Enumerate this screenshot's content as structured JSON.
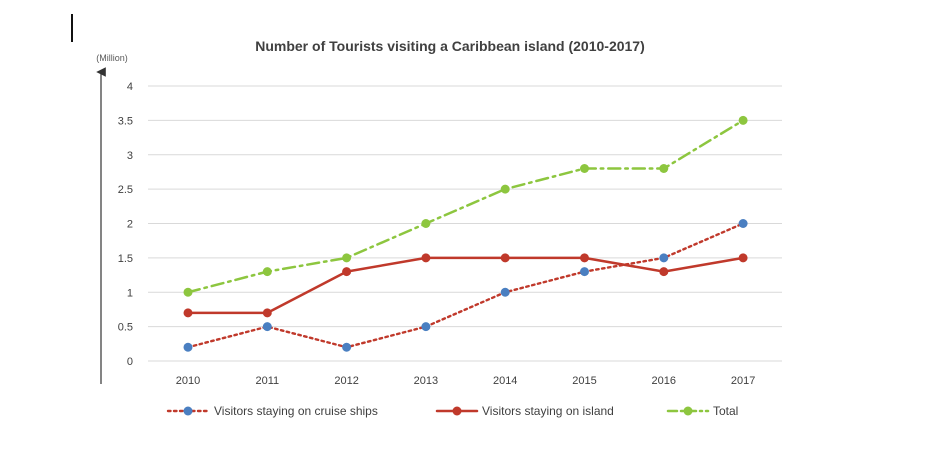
{
  "chart_data": {
    "type": "line",
    "title": "Number of Tourists visiting a Caribbean island (2010-2017)",
    "ylabel": "(Million)",
    "xlabel": "",
    "x": [
      "2010",
      "2011",
      "2012",
      "2013",
      "2014",
      "2015",
      "2016",
      "2017"
    ],
    "yticks": [
      "0",
      "0.5",
      "1",
      "1.5",
      "2",
      "2.5",
      "3",
      "3.5",
      "4"
    ],
    "ylim": [
      0,
      4
    ],
    "grid": true,
    "legend_position": "bottom",
    "series": [
      {
        "name": "Visitors staying on cruise ships",
        "values": [
          0.2,
          0.5,
          0.2,
          0.5,
          1.0,
          1.3,
          1.5,
          2.0
        ],
        "line_color": "#c0392b",
        "marker_color": "#4a7fc1",
        "style": "dotted"
      },
      {
        "name": "Visitors staying on island",
        "values": [
          0.7,
          0.7,
          1.3,
          1.5,
          1.5,
          1.5,
          1.3,
          1.5
        ],
        "line_color": "#c0392b",
        "marker_color": "#c0392b",
        "style": "solid"
      },
      {
        "name": "Total",
        "values": [
          1.0,
          1.3,
          1.5,
          2.0,
          2.5,
          2.8,
          2.8,
          3.5
        ],
        "line_color": "#8dc63f",
        "marker_color": "#8dc63f",
        "style": "dashdot"
      }
    ]
  }
}
